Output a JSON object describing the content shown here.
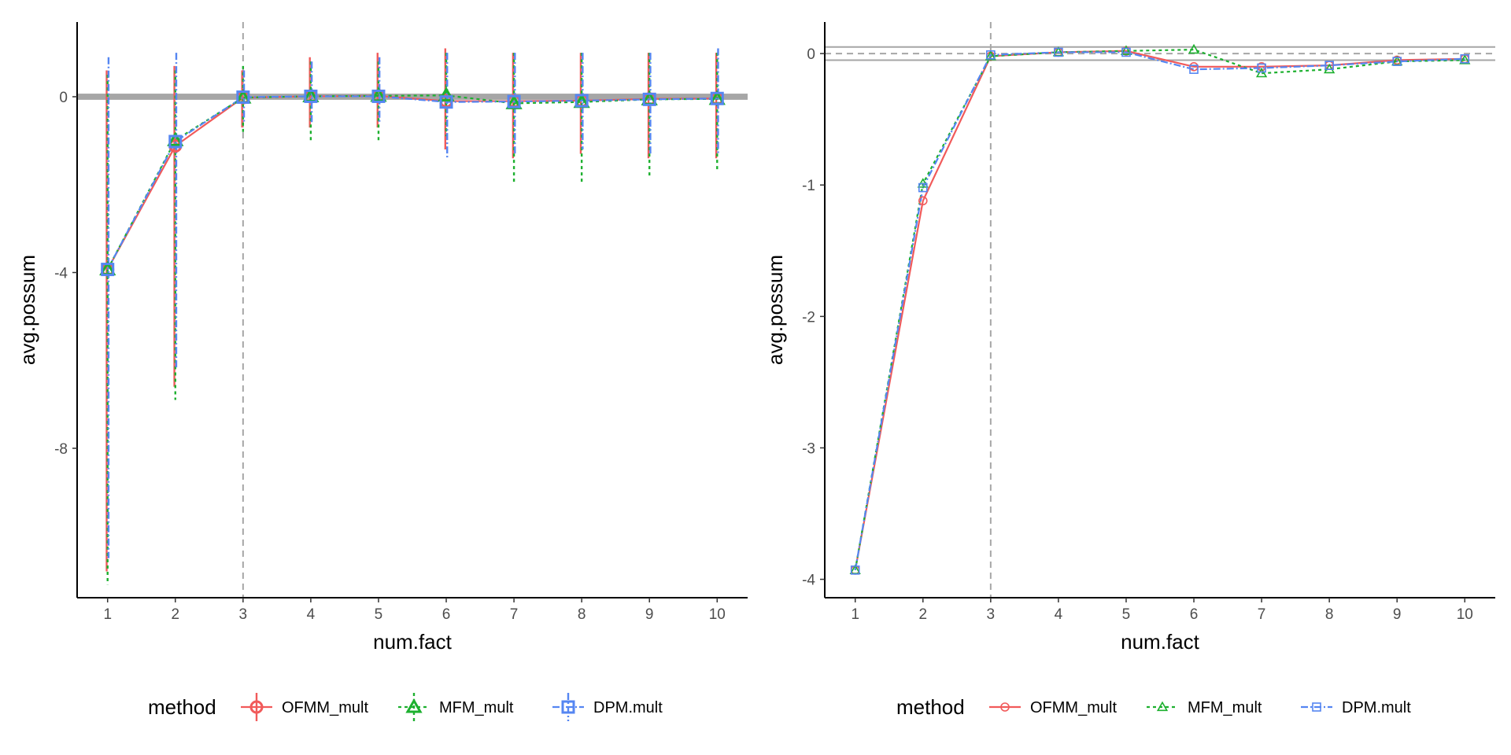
{
  "colors": {
    "OFMM_mult": "#F15A5A",
    "MFM_mult": "#1DB02F",
    "DPM.mult": "#5586F2",
    "reference_line": "#a6a6a6",
    "axis": "#000000"
  },
  "chart_data": [
    {
      "type": "line",
      "panel": "left",
      "with_error_bars": true,
      "xlabel": "num.fact",
      "ylabel": "avg.possum",
      "x": [
        1,
        2,
        3,
        4,
        5,
        6,
        7,
        8,
        9,
        10
      ],
      "x_ticks": [
        1,
        2,
        3,
        4,
        5,
        6,
        7,
        8,
        9,
        10
      ],
      "y_ticks": [
        0,
        -4,
        -8
      ],
      "xlim": [
        0.55,
        10.45
      ],
      "ylim": [
        -11.4,
        1.7
      ],
      "vline_x": 3,
      "hband": [
        -0.07,
        0.07
      ],
      "grid": false,
      "legend_position": "bottom",
      "legend_title": "method",
      "series": [
        {
          "name": "OFMM_mult",
          "linetype": "solid",
          "marker": "circle",
          "values": [
            -3.93,
            -1.12,
            -0.02,
            0.01,
            0.02,
            -0.1,
            -0.1,
            -0.09,
            -0.05,
            -0.04
          ],
          "lower": [
            -10.8,
            -6.6,
            -0.7,
            -0.7,
            -0.7,
            -1.2,
            -1.4,
            -1.3,
            -1.4,
            -1.4
          ],
          "upper": [
            0.6,
            0.7,
            0.6,
            0.9,
            1.0,
            1.1,
            1.0,
            1.0,
            1.0,
            1.0
          ]
        },
        {
          "name": "MFM_mult",
          "linetype": "dashed",
          "marker": "triangle",
          "values": [
            -3.93,
            -0.99,
            -0.02,
            0.01,
            0.02,
            0.03,
            -0.15,
            -0.12,
            -0.06,
            -0.05
          ],
          "lower": [
            -11.1,
            -6.9,
            -0.8,
            -1.0,
            -1.0,
            -0.9,
            -2.0,
            -2.0,
            -1.8,
            -1.7
          ],
          "upper": [
            0.5,
            0.6,
            0.7,
            0.8,
            0.8,
            1.0,
            1.0,
            1.0,
            1.0,
            1.0
          ]
        },
        {
          "name": "DPM.mult",
          "linetype": "dashdot",
          "marker": "square",
          "values": [
            -3.93,
            -1.02,
            -0.01,
            0.01,
            0.01,
            -0.12,
            -0.11,
            -0.09,
            -0.06,
            -0.04
          ],
          "lower": [
            -10.5,
            -6.2,
            -0.6,
            -0.6,
            -0.6,
            -1.4,
            -1.3,
            -1.2,
            -1.3,
            -1.3
          ],
          "upper": [
            0.9,
            1.0,
            0.6,
            0.8,
            0.9,
            1.0,
            1.0,
            1.0,
            1.0,
            1.1
          ]
        }
      ]
    },
    {
      "type": "line",
      "panel": "right",
      "with_error_bars": false,
      "xlabel": "num.fact",
      "ylabel": "avg.possum",
      "x": [
        1,
        2,
        3,
        4,
        5,
        6,
        7,
        8,
        9,
        10
      ],
      "x_ticks": [
        1,
        2,
        3,
        4,
        5,
        6,
        7,
        8,
        9,
        10
      ],
      "y_ticks": [
        0,
        -1,
        -2,
        -3,
        -4
      ],
      "xlim": [
        0.55,
        10.45
      ],
      "ylim": [
        -4.14,
        0.24
      ],
      "vline_x": 3,
      "hlines_solid": [
        0.05,
        -0.05
      ],
      "hline_dashed": 0,
      "grid": false,
      "legend_position": "bottom",
      "legend_title": "method",
      "series": [
        {
          "name": "OFMM_mult",
          "linetype": "solid",
          "marker": "circle",
          "values": [
            -3.93,
            -1.12,
            -0.02,
            0.01,
            0.02,
            -0.1,
            -0.1,
            -0.09,
            -0.05,
            -0.04
          ]
        },
        {
          "name": "MFM_mult",
          "linetype": "dashed",
          "marker": "triangle",
          "values": [
            -3.93,
            -0.99,
            -0.02,
            0.01,
            0.02,
            0.03,
            -0.15,
            -0.12,
            -0.06,
            -0.05
          ]
        },
        {
          "name": "DPM.mult",
          "linetype": "dashdot",
          "marker": "square",
          "values": [
            -3.93,
            -1.02,
            -0.01,
            0.01,
            0.01,
            -0.12,
            -0.11,
            -0.09,
            -0.06,
            -0.04
          ]
        }
      ]
    }
  ]
}
